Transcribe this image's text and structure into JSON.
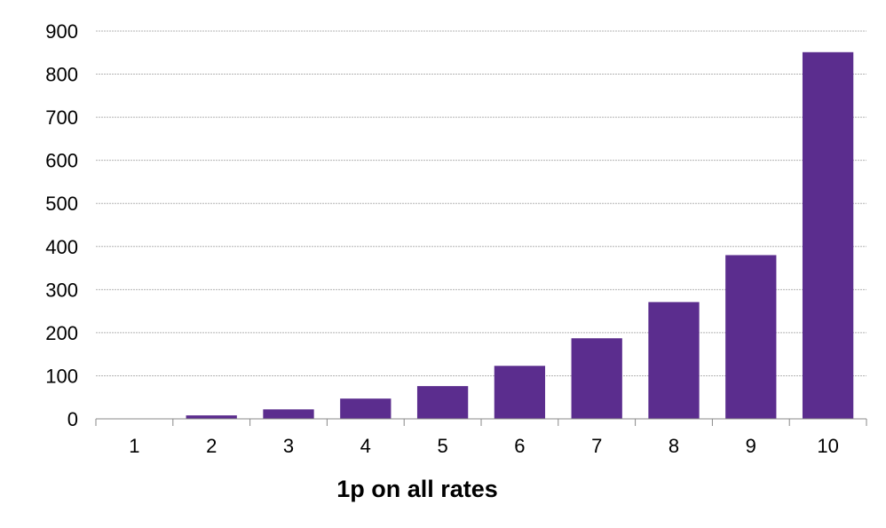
{
  "chart_data": {
    "type": "bar",
    "title": "",
    "xlabel": "1p on all rates",
    "ylabel": "",
    "categories": [
      "1",
      "2",
      "3",
      "4",
      "5",
      "6",
      "7",
      "8",
      "9",
      "10"
    ],
    "series": [
      {
        "values": [
          1,
          8,
          22,
          47,
          76,
          123,
          187,
          271,
          380,
          851
        ],
        "color": "#5B2D8E"
      }
    ],
    "ylim": [
      0,
      900
    ],
    "yticks": [
      0,
      100,
      200,
      300,
      400,
      500,
      600,
      700,
      800,
      900
    ],
    "ytick_labels": [
      "0",
      "100",
      "200",
      "300",
      "400",
      "500",
      "600",
      "700",
      "800",
      "900"
    ],
    "grid": true,
    "legend": "none"
  },
  "colors": {
    "bar": "#5B2D8E",
    "gridline": "#B3B3B3",
    "axis": "#888888",
    "text": "#000000"
  }
}
